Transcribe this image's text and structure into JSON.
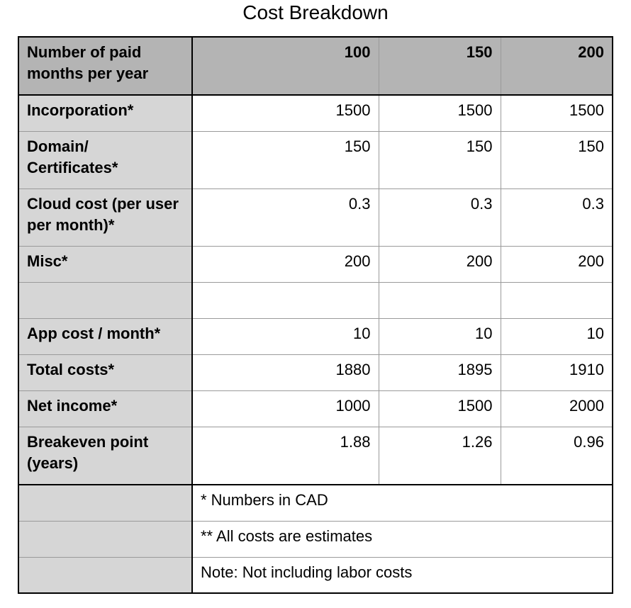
{
  "title": "Cost Breakdown",
  "header": {
    "label": "Number of paid months per year",
    "columns": [
      "100",
      "150",
      "200"
    ]
  },
  "rows": [
    {
      "label": "Incorporation*",
      "values": [
        "1500",
        "1500",
        "1500"
      ]
    },
    {
      "label": "Domain/ Certificates*",
      "values": [
        "150",
        "150",
        "150"
      ]
    },
    {
      "label": "Cloud cost (per user per month)*",
      "values": [
        "0.3",
        "0.3",
        "0.3"
      ]
    },
    {
      "label": "Misc*",
      "values": [
        "200",
        "200",
        "200"
      ]
    },
    {
      "label": "",
      "values": [
        "",
        "",
        ""
      ]
    },
    {
      "label": "App cost / month*",
      "values": [
        "10",
        "10",
        "10"
      ]
    },
    {
      "label": "Total costs*",
      "values": [
        "1880",
        "1895",
        "1910"
      ]
    },
    {
      "label": "Net income*",
      "values": [
        "1000",
        "1500",
        "2000"
      ]
    },
    {
      "label": "Breakeven point (years)",
      "values": [
        "1.88",
        "1.26",
        "0.96"
      ]
    }
  ],
  "notes": [
    "* Numbers in CAD",
    "** All costs are estimates",
    "Note: Not including labor costs"
  ]
}
